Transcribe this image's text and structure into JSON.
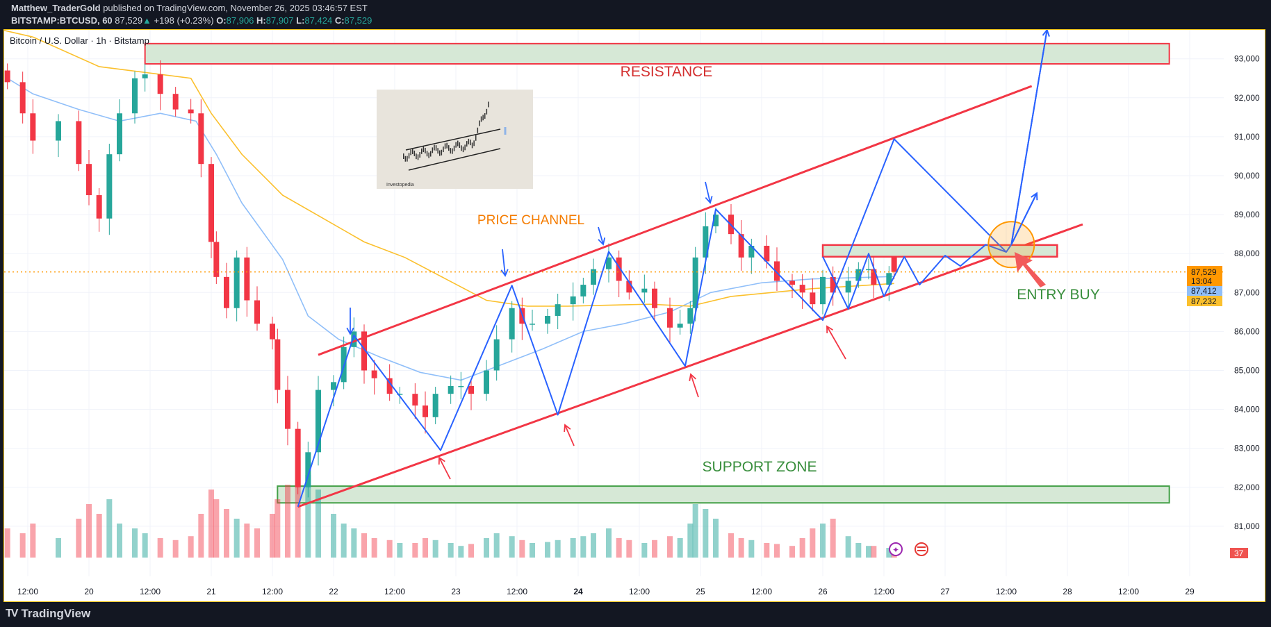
{
  "header": {
    "author": "Matthew_TraderGold",
    "published": "published on TradingView.com, November 26, 2025 03:46:57 EST",
    "symbol": "BITSTAMP:BTCUSD, 60",
    "last": "87,529",
    "change": "+198 (+0.23%)",
    "o_label": "O:",
    "o": "87,906",
    "h_label": "H:",
    "h": "87,907",
    "l_label": "L:",
    "l": "87,424",
    "c_label": "C:",
    "c": "87,529"
  },
  "footer": {
    "brand": "TradingView"
  },
  "colors": {
    "up": "#26a69a",
    "down": "#f23645",
    "ma_fast": "#90bff9",
    "ma_slow": "#fbc02d",
    "drawing_blue": "#2962ff",
    "drawing_red": "#f23645",
    "zone_fill": "#d6e8d6",
    "last_price": "#ff9800"
  },
  "chart_data": {
    "type": "candlestick",
    "title": "Bitcoin / U.S. Dollar · 1h · Bitstamp",
    "interval": "1h",
    "ylim": [
      80300,
      93800
    ],
    "y_ticks": [
      "81,000",
      "82,000",
      "83,000",
      "84,000",
      "85,000",
      "86,000",
      "87,000",
      "88,000",
      "89,000",
      "90,000",
      "91,000",
      "92,000",
      "93,000"
    ],
    "y_tick_values": [
      81000,
      82000,
      83000,
      84000,
      85000,
      86000,
      87000,
      88000,
      89000,
      90000,
      91000,
      92000,
      93000
    ],
    "x_ticks": [
      {
        "t": "11-19 12:00",
        "label": "12:00"
      },
      {
        "t": "11-20 00:00",
        "label": "20"
      },
      {
        "t": "11-20 12:00",
        "label": "12:00"
      },
      {
        "t": "11-21 00:00",
        "label": "21"
      },
      {
        "t": "11-21 12:00",
        "label": "12:00"
      },
      {
        "t": "11-22 00:00",
        "label": "22"
      },
      {
        "t": "11-22 12:00",
        "label": "12:00"
      },
      {
        "t": "11-23 00:00",
        "label": "23"
      },
      {
        "t": "11-23 12:00",
        "label": "12:00"
      },
      {
        "t": "11-24 00:00",
        "label": "24"
      },
      {
        "t": "11-24 12:00",
        "label": "12:00"
      },
      {
        "t": "11-25 00:00",
        "label": "25"
      },
      {
        "t": "11-25 12:00",
        "label": "12:00"
      },
      {
        "t": "11-26 00:00",
        "label": "26"
      },
      {
        "t": "11-26 12:00",
        "label": "12:00"
      },
      {
        "t": "11-27 00:00",
        "label": "27"
      },
      {
        "t": "11-27 12:00",
        "label": "12:00"
      },
      {
        "t": "11-28 00:00",
        "label": "28"
      },
      {
        "t": "11-28 12:00",
        "label": "12:00"
      },
      {
        "t": "11-29 00:00",
        "label": "29"
      }
    ],
    "grid": true,
    "candles_close_volume": [
      [
        "11-19 08:00",
        92400,
        30
      ],
      [
        "11-19 11:00",
        91600,
        25
      ],
      [
        "11-19 13:00",
        90900,
        35
      ],
      [
        "11-19 18:00",
        91400,
        20
      ],
      [
        "11-19 22:00",
        90300,
        40
      ],
      [
        "11-20 00:00",
        89500,
        55
      ],
      [
        "11-20 02:00",
        88900,
        45
      ],
      [
        "11-20 04:00",
        90550,
        60
      ],
      [
        "11-20 06:00",
        91600,
        35
      ],
      [
        "11-20 09:00",
        92500,
        30
      ],
      [
        "11-20 11:00",
        92600,
        25
      ],
      [
        "11-20 14:00",
        92100,
        20
      ],
      [
        "11-20 17:00",
        91700,
        18
      ],
      [
        "11-20 20:00",
        91600,
        22
      ],
      [
        "11-20 22:00",
        90300,
        45
      ],
      [
        "11-21 00:00",
        88300,
        70
      ],
      [
        "11-21 01:00",
        87400,
        60
      ],
      [
        "11-21 03:00",
        86600,
        50
      ],
      [
        "11-21 05:00",
        87900,
        40
      ],
      [
        "11-21 07:00",
        86800,
        35
      ],
      [
        "11-21 09:00",
        86200,
        30
      ],
      [
        "11-21 12:00",
        85800,
        45
      ],
      [
        "11-21 13:00",
        84500,
        60
      ],
      [
        "11-21 15:00",
        83500,
        75
      ],
      [
        "11-21 17:00",
        82000,
        100
      ],
      [
        "11-21 19:00",
        82900,
        85
      ],
      [
        "11-21 21:00",
        84500,
        70
      ],
      [
        "11-22 00:00",
        84700,
        45
      ],
      [
        "11-22 02:00",
        85600,
        35
      ],
      [
        "11-22 04:00",
        86000,
        30
      ],
      [
        "11-22 06:00",
        85000,
        25
      ],
      [
        "11-22 08:00",
        84800,
        20
      ],
      [
        "11-22 11:00",
        84400,
        18
      ],
      [
        "11-22 13:00",
        84400,
        15
      ],
      [
        "11-22 16:00",
        84100,
        15
      ],
      [
        "11-22 18:00",
        83800,
        20
      ],
      [
        "11-22 20:00",
        84400,
        18
      ],
      [
        "11-22 23:00",
        84600,
        15
      ],
      [
        "11-23 01:00",
        84600,
        12
      ],
      [
        "11-23 03:00",
        84400,
        14
      ],
      [
        "11-23 06:00",
        85000,
        20
      ],
      [
        "11-23 08:00",
        85800,
        25
      ],
      [
        "11-23 11:00",
        86600,
        22
      ],
      [
        "11-23 13:00",
        86200,
        18
      ],
      [
        "11-23 15:00",
        86200,
        15
      ],
      [
        "11-23 18:00",
        86400,
        16
      ],
      [
        "11-23 20:00",
        86700,
        18
      ],
      [
        "11-23 23:00",
        86900,
        20
      ],
      [
        "11-24 01:00",
        87200,
        22
      ],
      [
        "11-24 03:00",
        87600,
        25
      ],
      [
        "11-24 06:00",
        87900,
        30
      ],
      [
        "11-24 08:00",
        87300,
        20
      ],
      [
        "11-24 10:00",
        87000,
        18
      ],
      [
        "11-24 13:00",
        87100,
        15
      ],
      [
        "11-24 15:00",
        86600,
        18
      ],
      [
        "11-24 18:00",
        86100,
        22
      ],
      [
        "11-24 20:00",
        86200,
        20
      ],
      [
        "11-24 22:00",
        86600,
        35
      ],
      [
        "11-24 23:00",
        87900,
        55
      ],
      [
        "11-25 01:00",
        88700,
        50
      ],
      [
        "11-25 03:00",
        89000,
        40
      ],
      [
        "11-25 06:00",
        88500,
        25
      ],
      [
        "11-25 08:00",
        87900,
        20
      ],
      [
        "11-25 10:00",
        88200,
        18
      ],
      [
        "11-25 13:00",
        87800,
        15
      ],
      [
        "11-25 15:00",
        87300,
        14
      ],
      [
        "11-25 18:00",
        87200,
        12
      ],
      [
        "11-25 20:00",
        87000,
        20
      ],
      [
        "11-25 22:00",
        86700,
        30
      ],
      [
        "11-26 00:00",
        87400,
        35
      ],
      [
        "11-26 02:00",
        87000,
        40
      ],
      [
        "11-26 05:00",
        87300,
        22
      ],
      [
        "11-26 07:00",
        87600,
        15
      ],
      [
        "11-26 09:00",
        87600,
        12
      ],
      [
        "11-26 10:00",
        87200,
        12
      ],
      [
        "11-26 13:00",
        87500,
        10
      ],
      [
        "11-26 14:00",
        87529,
        8
      ]
    ],
    "moving_averages": [
      {
        "value_label": "87,412",
        "color": "#90bff9",
        "points": [
          [
            "11-19 08:00",
            92500
          ],
          [
            "11-19 13:00",
            92100
          ],
          [
            "11-19 22:00",
            91700
          ],
          [
            "11-20 06:00",
            91400
          ],
          [
            "11-20 14:00",
            91600
          ],
          [
            "11-20 21:00",
            91400
          ],
          [
            "11-21 01:00",
            90550
          ],
          [
            "11-21 06:00",
            89300
          ],
          [
            "11-21 14:00",
            87850
          ],
          [
            "11-21 19:00",
            86400
          ],
          [
            "11-22 01:00",
            85800
          ],
          [
            "11-22 09:00",
            85350
          ],
          [
            "11-22 17:00",
            84950
          ],
          [
            "11-23 01:00",
            84750
          ],
          [
            "11-23 09:00",
            85150
          ],
          [
            "11-23 17:00",
            85550
          ],
          [
            "11-24 01:00",
            86000
          ],
          [
            "11-24 09:00",
            86200
          ],
          [
            "11-24 18:00",
            86500
          ],
          [
            "11-25 02:00",
            87000
          ],
          [
            "11-25 12:00",
            87250
          ],
          [
            "11-25 22:00",
            87350
          ],
          [
            "11-26 14:00",
            87412
          ]
        ]
      },
      {
        "value_label": "87,232",
        "color": "#fbc02d",
        "points": [
          [
            "11-19 05:00",
            93800
          ],
          [
            "11-19 13:00",
            93560
          ],
          [
            "11-20 02:00",
            92800
          ],
          [
            "11-20 20:00",
            92500
          ],
          [
            "11-21 00:00",
            91600
          ],
          [
            "11-21 06:00",
            90550
          ],
          [
            "11-21 14:00",
            89500
          ],
          [
            "11-21 22:00",
            88900
          ],
          [
            "11-22 06:00",
            88300
          ],
          [
            "11-22 14:00",
            87900
          ],
          [
            "11-22 22:00",
            87350
          ],
          [
            "11-23 06:00",
            86800
          ],
          [
            "11-23 14:00",
            86650
          ],
          [
            "11-23 22:00",
            86650
          ],
          [
            "11-24 14:00",
            86700
          ],
          [
            "11-24 22:00",
            86650
          ],
          [
            "11-25 06:00",
            86900
          ],
          [
            "11-25 22:00",
            87100
          ],
          [
            "11-26 14:00",
            87232
          ]
        ]
      }
    ],
    "last_price": {
      "value": 87529,
      "label": "87,529",
      "countdown": "13:04"
    },
    "badge": "37",
    "annotations": {
      "resistance_zone": {
        "label": "RESISTANCE",
        "from": "11-20 11:00",
        "to": "11-28 20:00",
        "top": 93390,
        "bottom": 92870
      },
      "support_zone": {
        "label": "SUPPORT ZONE",
        "from": "11-21 13:00",
        "to": "11-28 20:00",
        "top": 82030,
        "bottom": 81600
      },
      "entry_zone": {
        "label": "ENTRY BUY",
        "from": "11-26 00:00",
        "to": "11-27 22:00",
        "top": 88220,
        "bottom": 87920
      },
      "channel_label": "PRICE CHANNEL",
      "channel_upper": [
        [
          "11-21 21:00",
          85400
        ],
        [
          "11-27 17:00",
          92300
        ]
      ],
      "channel_lower": [
        [
          "11-21 17:00",
          81500
        ],
        [
          "11-28 03:00",
          88750
        ]
      ],
      "projection_main": [
        [
          "11-21 17:00",
          81500
        ],
        [
          "11-22 04:00",
          85900
        ],
        [
          "11-22 21:00",
          82950
        ],
        [
          "11-23 11:00",
          87180
        ],
        [
          "11-23 20:00",
          83860
        ],
        [
          "11-24 06:00",
          88050
        ],
        [
          "11-24 21:00",
          85110
        ],
        [
          "11-25 03:00",
          89140
        ],
        [
          "11-26 00:00",
          86290
        ],
        [
          "11-26 14:00",
          90940
        ],
        [
          "11-27 12:00",
          88040
        ],
        [
          "11-27 13:00",
          88230
        ],
        [
          "11-27 20:00",
          93740
        ]
      ],
      "projection_alt": [
        [
          "11-26 00:00",
          87920
        ],
        [
          "11-26 05:00",
          86580
        ],
        [
          "11-26 09:00",
          88000
        ],
        [
          "11-26 12:00",
          86900
        ],
        [
          "11-26 16:00",
          87920
        ],
        [
          "11-26 19:00",
          87200
        ],
        [
          "11-27 00:00",
          87950
        ],
        [
          "11-27 03:00",
          87680
        ],
        [
          "11-27 08:00",
          88230
        ],
        [
          "11-27 12:00",
          88040
        ]
      ],
      "projection_branch": [
        [
          "11-27 13:00",
          88230
        ],
        [
          "11-27 18:00",
          89550
        ]
      ],
      "entry_circle": {
        "t": "11-27 13:00",
        "price": 88230
      }
    },
    "inset_image": {
      "caption": "Investopedia"
    }
  }
}
